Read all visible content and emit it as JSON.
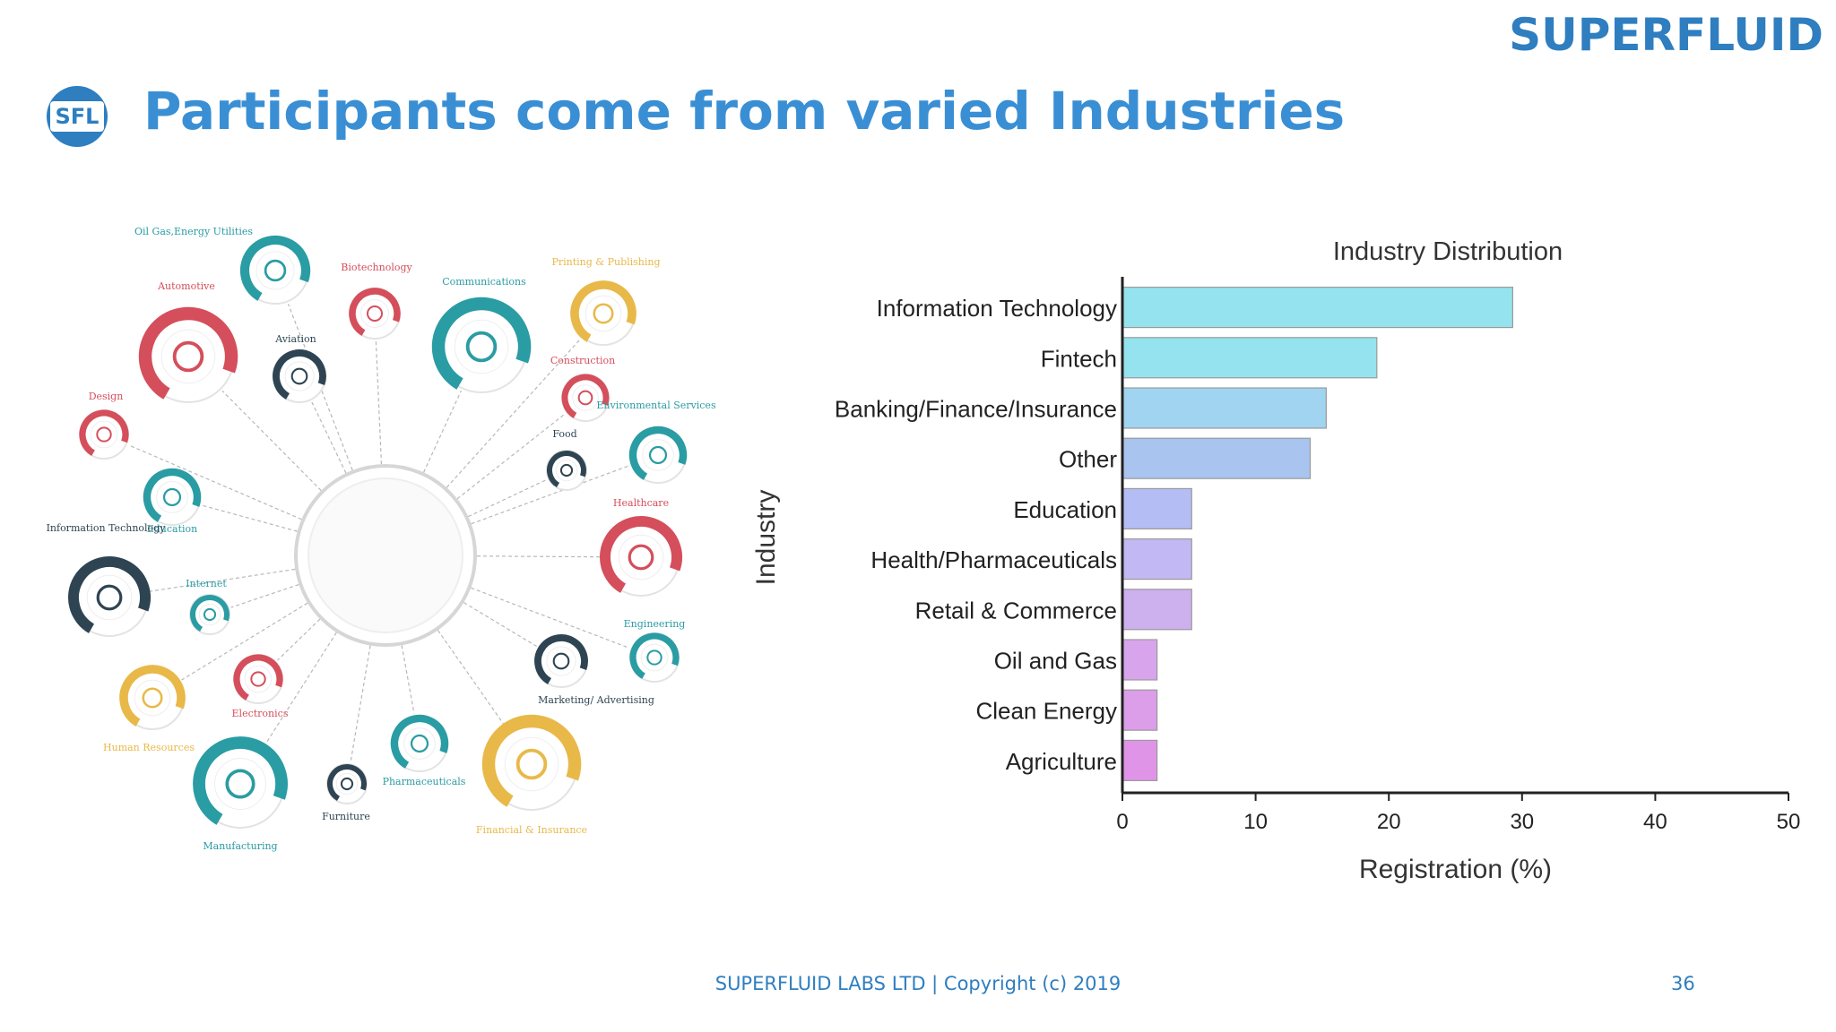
{
  "brand": "SUPERFLUID",
  "logo_text": "SFL",
  "title": "Participants come from varied Industries",
  "footer": "SUPERFLUID LABS LTD | Copyright (c) 2019",
  "page_number": "36",
  "infographic": {
    "nodes": [
      {
        "label": "Oil Gas,Energy Utilities",
        "color": "#2a9ca3",
        "icon": "fuel-pump-icon"
      },
      {
        "label": "Biotechnology",
        "color": "#d54e5b",
        "icon": "microscope-icon"
      },
      {
        "label": "Communications",
        "color": "#2a9ca3",
        "icon": "antenna-icon"
      },
      {
        "label": "Printing & Publishing",
        "color": "#e8b949",
        "icon": "book-icon"
      },
      {
        "label": "Automotive",
        "color": "#d54e5b",
        "icon": "steering-wheel-icon"
      },
      {
        "label": "Aviation",
        "color": "#2e4452",
        "icon": "helicopter-icon"
      },
      {
        "label": "Construction",
        "color": "#d54e5b",
        "icon": "wheelbarrow-icon"
      },
      {
        "label": "Environmental Services",
        "color": "#2a9ca3",
        "icon": "plant-hand-icon"
      },
      {
        "label": "Design",
        "color": "#d54e5b",
        "icon": "palette-icon"
      },
      {
        "label": "Food",
        "color": "#2e4452",
        "icon": "plate-icon"
      },
      {
        "label": "Education",
        "color": "#2a9ca3",
        "icon": "diploma-icon"
      },
      {
        "label": "Healthcare",
        "color": "#d54e5b",
        "icon": "heart-icon"
      },
      {
        "label": "Information Technology",
        "color": "#2e4452",
        "icon": "network-icon"
      },
      {
        "label": "Internet",
        "color": "#2a9ca3",
        "icon": "computer-icon"
      },
      {
        "label": "Engineering",
        "color": "#2a9ca3",
        "icon": "gear-icon"
      },
      {
        "label": "Marketing/ Advertising",
        "color": "#2e4452",
        "icon": "target-icon"
      },
      {
        "label": "Human Resources",
        "color": "#e8b949",
        "icon": "people-icon"
      },
      {
        "label": "Electronics",
        "color": "#d54e5b",
        "icon": "chip-icon"
      },
      {
        "label": "Pharmaceuticals",
        "color": "#2a9ca3",
        "icon": "rx-icon"
      },
      {
        "label": "Manufacturing",
        "color": "#2a9ca3",
        "icon": "factory-icon"
      },
      {
        "label": "Furniture",
        "color": "#2e4452",
        "icon": "armchair-icon"
      },
      {
        "label": "Financial & Insurance",
        "color": "#e8b949",
        "icon": "calculator-icon"
      }
    ]
  },
  "chart_data": {
    "type": "bar",
    "orientation": "horizontal",
    "title": "Industry Distribution",
    "xlabel": "Registration (%)",
    "ylabel": "Industry",
    "categories": [
      "Information Technology",
      "Fintech",
      "Banking/Finance/Insurance",
      "Other",
      "Education",
      "Health/Pharmaceuticals",
      "Retail & Commerce",
      "Oil and Gas",
      "Clean Energy",
      "Agriculture"
    ],
    "values": [
      29.3,
      19.1,
      15.3,
      14.1,
      5.2,
      5.2,
      5.2,
      2.6,
      2.6,
      2.6
    ],
    "xlim": [
      0,
      50
    ],
    "xticks": [
      0,
      10,
      20,
      30,
      40,
      50
    ],
    "colors": [
      "#95e3ee",
      "#95e3ee",
      "#a0d4f0",
      "#a8c4ef",
      "#b4bdf4",
      "#c2b8f3",
      "#cdb0ee",
      "#d8a4ec",
      "#dc9ee9",
      "#e094e8"
    ],
    "grid": false
  }
}
